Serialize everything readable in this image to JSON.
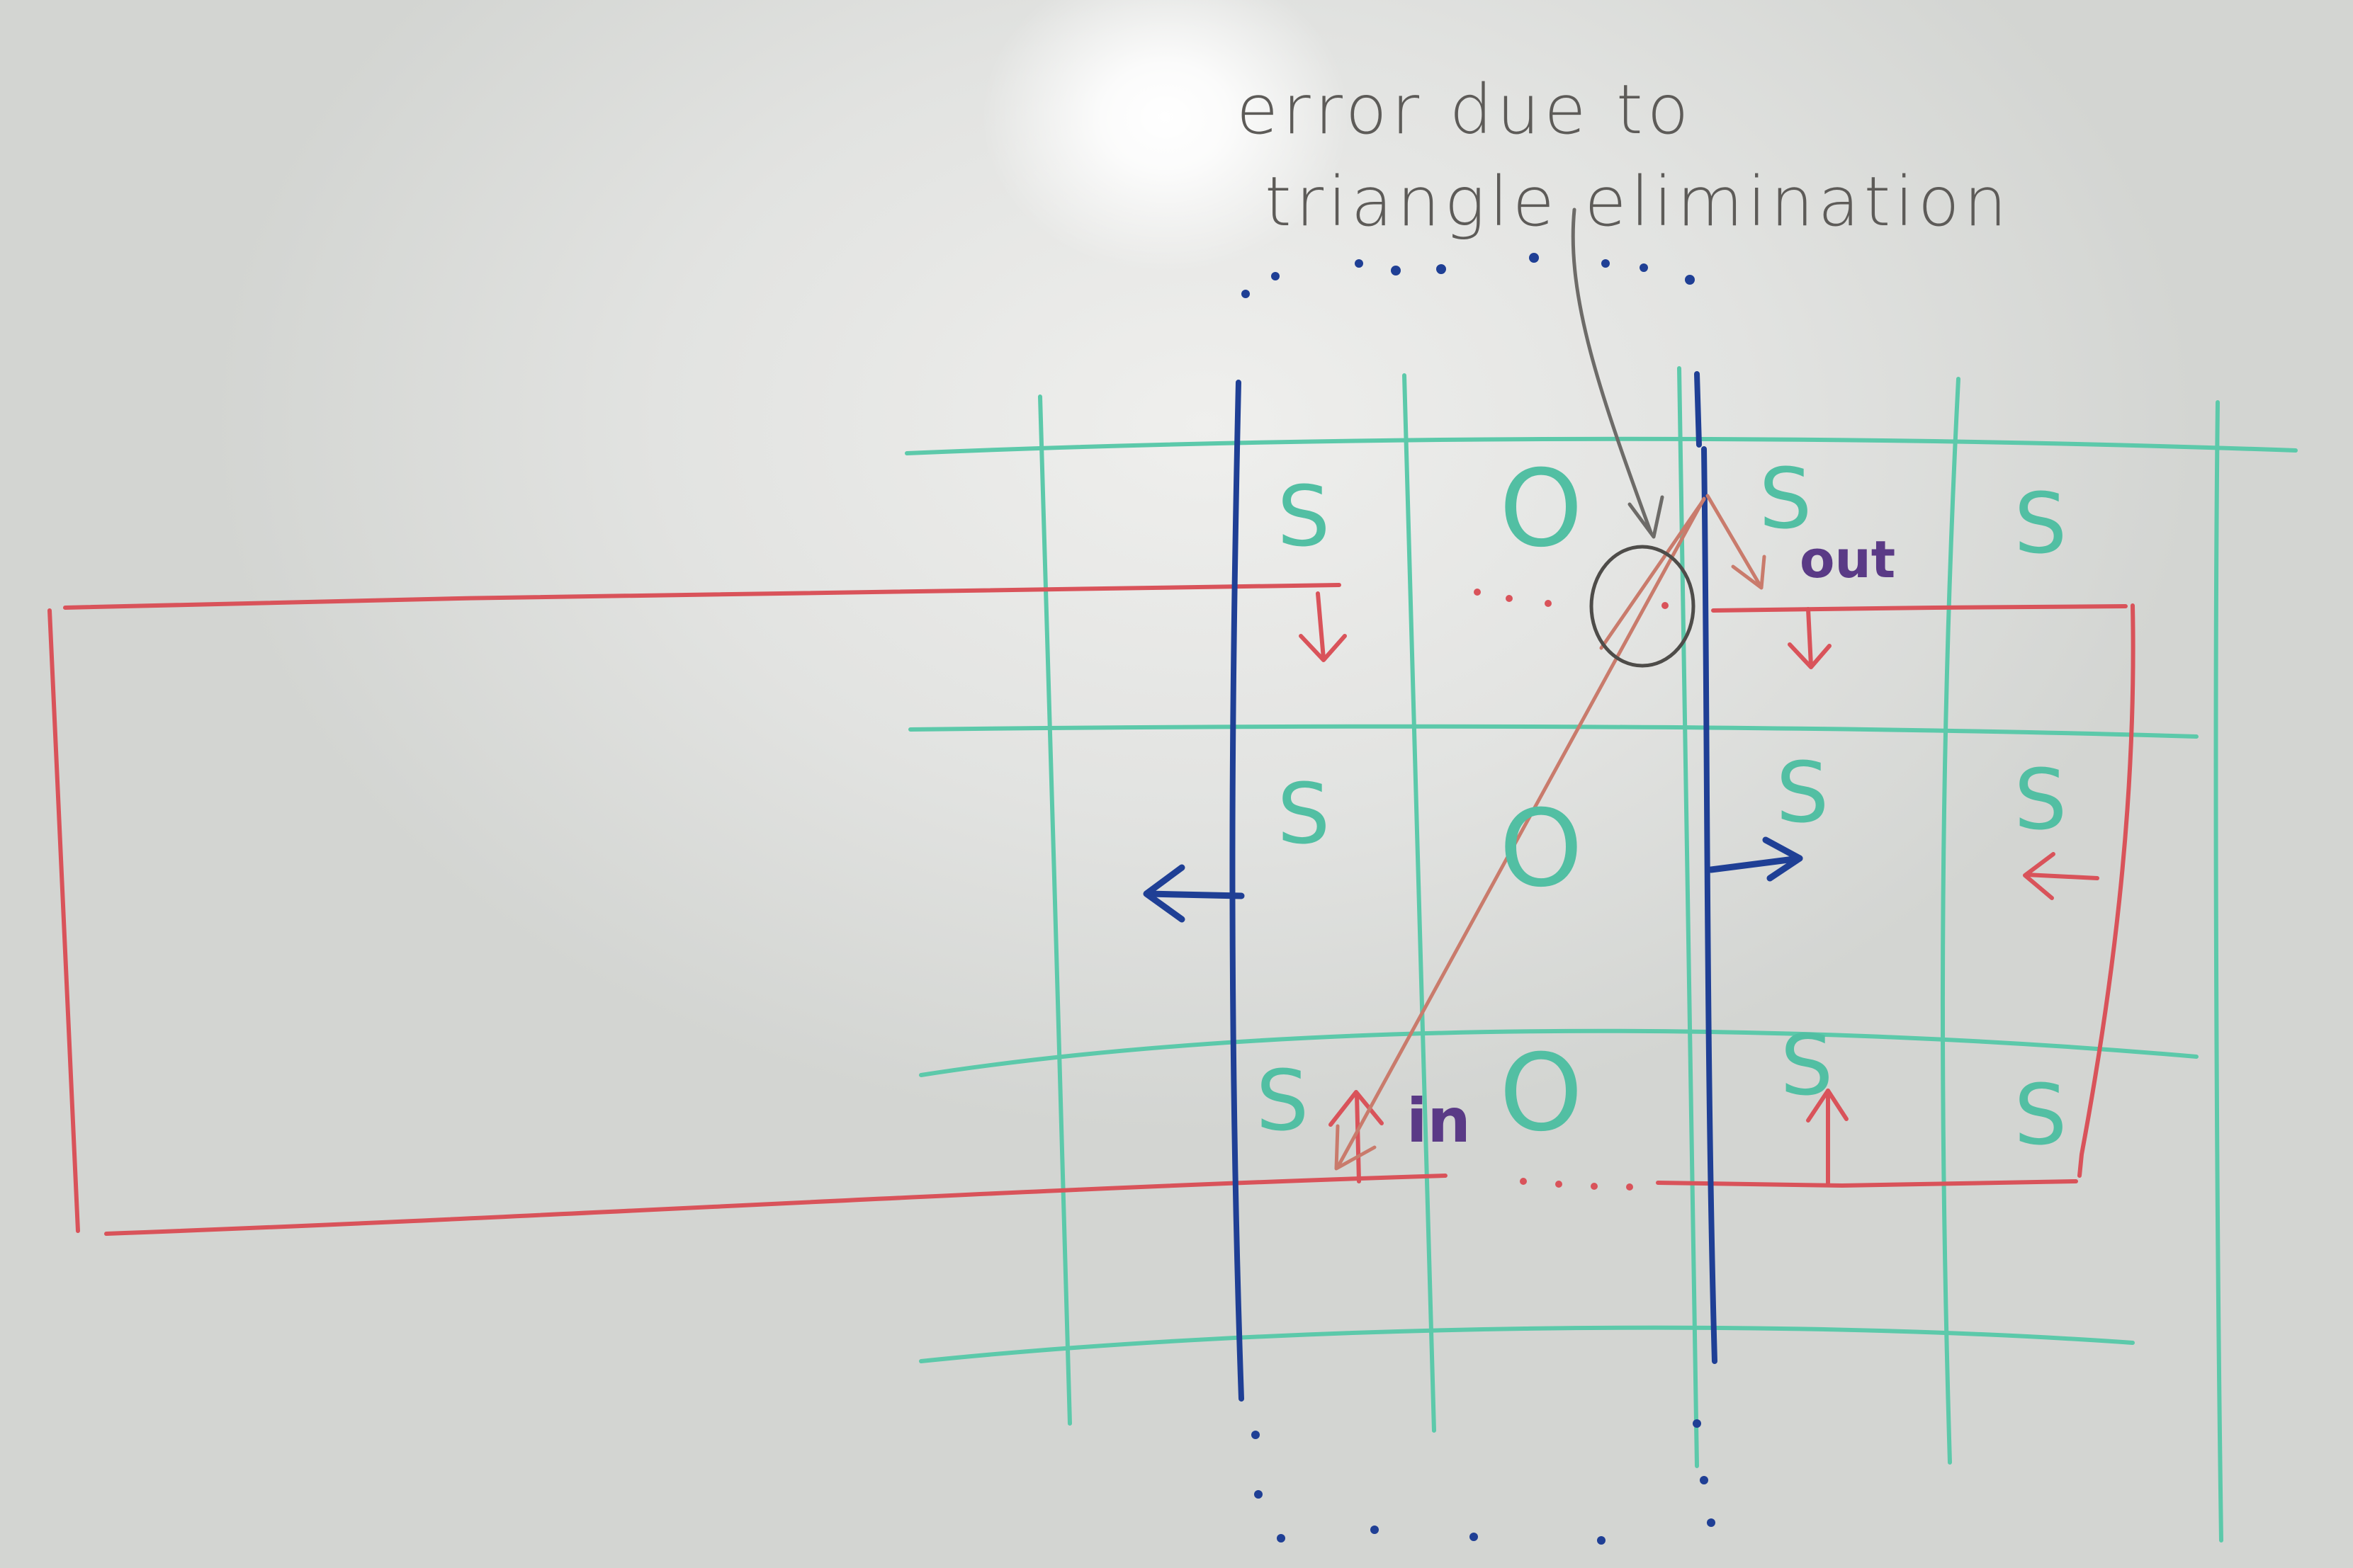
{
  "annotation": {
    "line1": "error due to",
    "line2": "triangle elimination"
  },
  "cells": [
    {
      "label": "S",
      "kind": "s",
      "col": 0,
      "row": 0
    },
    {
      "label": "O",
      "kind": "o",
      "col": 1,
      "row": 0
    },
    {
      "label": "S",
      "kind": "s",
      "col": 2,
      "row": 0
    },
    {
      "label": "S",
      "kind": "s",
      "col": 3,
      "row": 0
    },
    {
      "label": "S",
      "kind": "s",
      "col": 0,
      "row": 1
    },
    {
      "label": "O",
      "kind": "o",
      "col": 1,
      "row": 1
    },
    {
      "label": "S",
      "kind": "s",
      "col": 2,
      "row": 1
    },
    {
      "label": "S",
      "kind": "s",
      "col": 3,
      "row": 1
    },
    {
      "label": "S",
      "kind": "s",
      "col": 0,
      "row": 2
    },
    {
      "label": "O",
      "kind": "o",
      "col": 1,
      "row": 2
    },
    {
      "label": "S",
      "kind": "s",
      "col": 2,
      "row": 2
    },
    {
      "label": "S",
      "kind": "s",
      "col": 3,
      "row": 2
    }
  ],
  "words": {
    "out": "out",
    "in": "in"
  },
  "colors": {
    "grid": "#5cc9aa",
    "boundary": "#1f3f95",
    "region": "#d9535a",
    "annotation": "#5d5b58",
    "label": "#5a3a86",
    "triangle_edge": "#c97b6c"
  }
}
